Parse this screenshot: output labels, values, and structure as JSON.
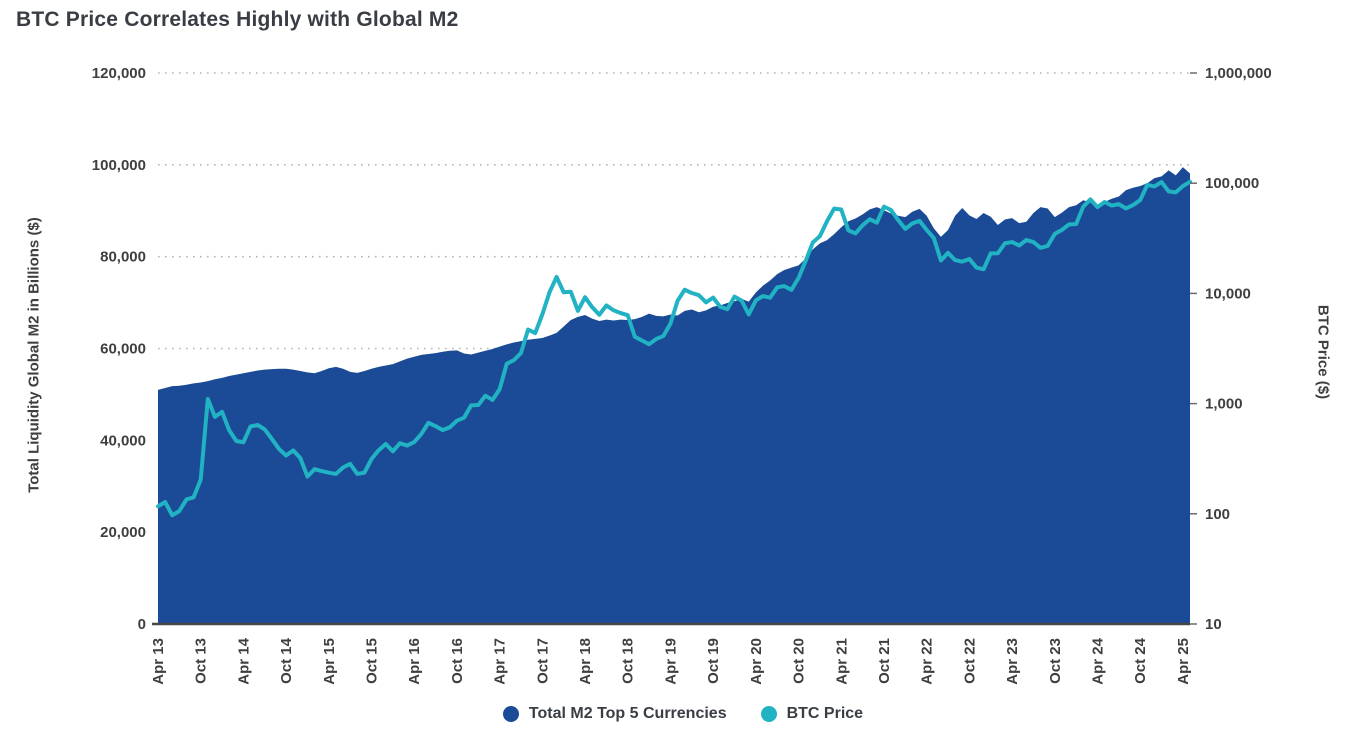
{
  "title": "BTC Price Correlates Highly with Global M2",
  "colors": {
    "m2_area": "#1b4b96",
    "btc_line": "#21b2c3",
    "grid": "#b5b5b5",
    "axis_text": "#3f3f3f",
    "title_text": "#393e44"
  },
  "chart_data": {
    "type": "area+line",
    "title": "BTC Price Correlates Highly with Global M2",
    "start_month": "2013-04",
    "end_month": "2025-05",
    "frequency": "monthly",
    "grid": "horizontal-dotted",
    "legend_position": "bottom-center",
    "x_tick_labels": [
      "Apr 13",
      "Oct 13",
      "Apr 14",
      "Oct 14",
      "Apr 15",
      "Oct 15",
      "Apr 16",
      "Oct 16",
      "Apr 17",
      "Oct 17",
      "Apr 18",
      "Oct 18",
      "Apr 19",
      "Oct 19",
      "Apr 20",
      "Oct 20",
      "Apr 21",
      "Oct 21",
      "Apr 22",
      "Oct 22",
      "Apr 23",
      "Oct 23",
      "Apr 24",
      "Oct 24",
      "Apr 25"
    ],
    "x_ticks_every_n_months": 6,
    "left_axis": {
      "label": "Total Liquidity Global M2 in Billions ($)",
      "scale": "linear",
      "min": 0,
      "max": 120000,
      "tick_values": [
        120000,
        100000,
        80000,
        60000,
        40000,
        20000,
        0
      ],
      "tick_labels": [
        "120,000",
        "100,000",
        "80,000",
        "60,000",
        "40,000",
        "20,000",
        "0"
      ]
    },
    "right_axis": {
      "label": "BTC Price ($)",
      "scale": "log",
      "min": 10,
      "max": 1000000,
      "tick_values": [
        1000000,
        100000,
        10000,
        1000,
        100,
        10
      ],
      "tick_labels": [
        "1,000,000",
        "100,000",
        "10,000",
        "1,000",
        "100",
        "10"
      ]
    },
    "series": [
      {
        "name": "Total M2 Top 5 Currencies",
        "type": "area",
        "axis": "left",
        "color": "#1b4b96",
        "values": [
          51000,
          51400,
          51800,
          51900,
          52100,
          52400,
          52600,
          52900,
          53300,
          53600,
          54000,
          54300,
          54600,
          54900,
          55200,
          55400,
          55500,
          55600,
          55600,
          55400,
          55100,
          54800,
          54600,
          55100,
          55700,
          56000,
          55600,
          54900,
          54700,
          55100,
          55600,
          56000,
          56300,
          56600,
          57200,
          57800,
          58200,
          58600,
          58800,
          59000,
          59300,
          59500,
          59600,
          58900,
          58700,
          59100,
          59500,
          59900,
          60400,
          60900,
          61300,
          61600,
          61900,
          62100,
          62300,
          62800,
          63400,
          64800,
          66200,
          66900,
          67300,
          66500,
          66000,
          66300,
          66100,
          66300,
          66200,
          66400,
          66900,
          67600,
          67100,
          67000,
          67400,
          67200,
          68200,
          68500,
          67900,
          68300,
          69100,
          69400,
          69900,
          70300,
          70800,
          70200,
          72200,
          73700,
          74800,
          76200,
          77100,
          77600,
          78100,
          79600,
          81600,
          82900,
          83600,
          84900,
          86400,
          87700,
          88300,
          89200,
          90300,
          90800,
          90100,
          89400,
          88900,
          88600,
          89800,
          90400,
          88900,
          86200,
          84300,
          85800,
          88900,
          90600,
          89000,
          88200,
          89500,
          88700,
          86900,
          88100,
          88400,
          87300,
          87600,
          89500,
          90800,
          90500,
          88600,
          89600,
          90800,
          91200,
          92300,
          91800,
          91200,
          91900,
          92600,
          93100,
          94500,
          95000,
          95400,
          96000,
          97100,
          97500,
          98800,
          97700,
          99500,
          98100
        ]
      },
      {
        "name": "BTC Price",
        "type": "line",
        "axis": "right",
        "color": "#21b2c3",
        "values": [
          117,
          128,
          97,
          106,
          135,
          141,
          204,
          1100,
          757,
          842,
          573,
          458,
          446,
          620,
          640,
          583,
          478,
          388,
          338,
          376,
          320,
          218,
          254,
          244,
          236,
          230,
          263,
          284,
          230,
          236,
          314,
          377,
          430,
          369,
          437,
          416,
          448,
          531,
          670,
          624,
          575,
          610,
          700,
          745,
          963,
          970,
          1180,
          1080,
          1350,
          2300,
          2480,
          2875,
          4700,
          4360,
          6450,
          10200,
          14100,
          10250,
          10350,
          6940,
          9240,
          7500,
          6400,
          7780,
          7030,
          6630,
          6340,
          4040,
          3740,
          3460,
          3860,
          4100,
          5320,
          8560,
          10800,
          10080,
          9630,
          8290,
          9150,
          7550,
          7190,
          9350,
          8600,
          6440,
          8650,
          9450,
          9140,
          11350,
          11650,
          10780,
          13800,
          19700,
          29000,
          33100,
          45200,
          58800,
          57750,
          37300,
          35000,
          41500,
          47100,
          43800,
          61300,
          57000,
          46200,
          38500,
          43200,
          45500,
          37650,
          31800,
          19900,
          23300,
          20050,
          19400,
          20500,
          17150,
          16550,
          23100,
          23150,
          28500,
          29250,
          27200,
          30480,
          29230,
          25930,
          26970,
          34650,
          37700,
          42250,
          42580,
          61200,
          71300,
          60640,
          67500,
          62680,
          64600,
          58970,
          63330,
          70220,
          96400,
          93400,
          102400,
          84350,
          82550,
          94200,
          103000
        ]
      }
    ]
  },
  "legend": {
    "items": [
      {
        "label": "Total M2 Top 5 Currencies",
        "color": "#1b4b96"
      },
      {
        "label": "BTC Price",
        "color": "#21b2c3"
      }
    ]
  }
}
